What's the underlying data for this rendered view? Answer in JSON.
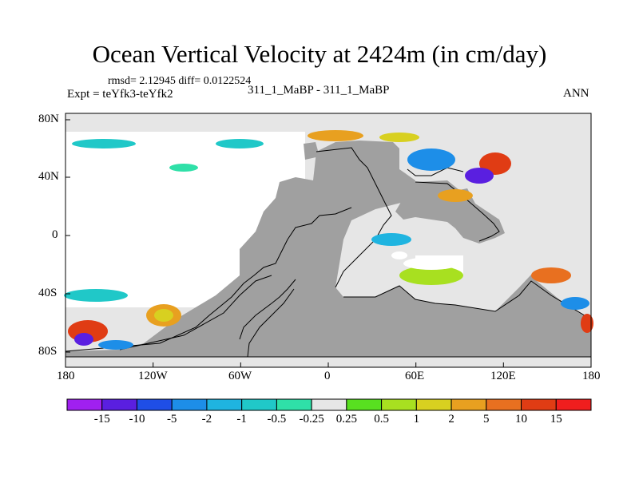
{
  "header": {
    "title": "Ocean Vertical Velocity at 2424m (in cm/day)",
    "stats": "rmsd= 2.12945 diff= 0.0122524",
    "expt": "Expt = teYfk3-teYfk2",
    "case": "311_1_MaBP - 311_1_MaBP",
    "season": "ANN"
  },
  "map": {
    "lon_ticks": [
      "180",
      "120W",
      "60W",
      "0",
      "60E",
      "120E",
      "180"
    ],
    "lat_ticks": [
      "80N",
      "40N",
      "0",
      "40S",
      "80S"
    ],
    "land_color": "#a0a0a0",
    "ocean_neutral_color": "#e6e6e6"
  },
  "colorbar": {
    "labels": [
      "-15",
      "-10",
      "-5",
      "-2",
      "-1",
      "-0.5",
      "-0.25",
      "0.25",
      "0.5",
      "1",
      "2",
      "5",
      "10",
      "15"
    ],
    "colors": [
      "#a020f0",
      "#5a1fe0",
      "#1f4ee6",
      "#1d8ee8",
      "#1fb4e0",
      "#20c8c8",
      "#2fe0a8",
      "#e6e6e6",
      "#58e020",
      "#a8e020",
      "#d8d020",
      "#e8a020",
      "#e87020",
      "#e03c14",
      "#f01e1e"
    ]
  }
}
